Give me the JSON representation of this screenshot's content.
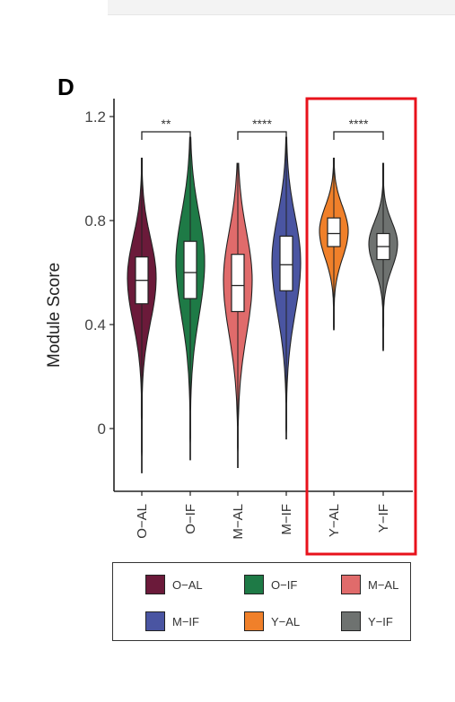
{
  "panel": {
    "letter": "D"
  },
  "chart_data": {
    "type": "violin",
    "title": "",
    "xlabel": "",
    "ylabel": "Module Score",
    "ylim": [
      -0.22,
      1.25
    ],
    "yticks": [
      0,
      0.4,
      0.8,
      1.2
    ],
    "ytick_labels": [
      "0",
      "0.4",
      "0.8",
      "1.2"
    ],
    "categories": [
      "O-AL",
      "O-IF",
      "M-AL",
      "M-IF",
      "Y-AL",
      "Y-IF"
    ],
    "category_labels": [
      "O−AL",
      "O−IF",
      "M−AL",
      "M−IF",
      "Y−AL",
      "Y−IF"
    ],
    "colors": [
      "#6b1a3a",
      "#1e7a46",
      "#e06b6b",
      "#4a55a2",
      "#f0802a",
      "#6e7270"
    ],
    "series": [
      {
        "name": "O−AL",
        "min": -0.17,
        "q1": 0.48,
        "median": 0.57,
        "q3": 0.66,
        "max": 1.04,
        "peak_density_y": 0.58
      },
      {
        "name": "O−IF",
        "min": -0.12,
        "q1": 0.5,
        "median": 0.6,
        "q3": 0.72,
        "max": 1.12,
        "peak_density_y": 0.64
      },
      {
        "name": "M−AL",
        "min": -0.15,
        "q1": 0.45,
        "median": 0.55,
        "q3": 0.67,
        "max": 1.02,
        "peak_density_y": 0.57
      },
      {
        "name": "M−IF",
        "min": -0.04,
        "q1": 0.53,
        "median": 0.63,
        "q3": 0.74,
        "max": 1.12,
        "peak_density_y": 0.64
      },
      {
        "name": "Y−AL",
        "min": 0.38,
        "q1": 0.7,
        "median": 0.75,
        "q3": 0.81,
        "max": 1.04,
        "peak_density_y": 0.76
      },
      {
        "name": "Y−IF",
        "min": 0.3,
        "q1": 0.65,
        "median": 0.7,
        "q3": 0.75,
        "max": 1.02,
        "peak_density_y": 0.71
      }
    ],
    "significance": [
      {
        "from": "O-AL",
        "to": "O-IF",
        "label": "**"
      },
      {
        "from": "M-AL",
        "to": "M-IF",
        "label": "****"
      },
      {
        "from": "Y-AL",
        "to": "Y-IF",
        "label": "****"
      }
    ],
    "highlight": {
      "groups": [
        "Y-AL",
        "Y-IF"
      ],
      "color": "#e8121b"
    },
    "legend": {
      "placement": "bottom",
      "entries": [
        "O−AL",
        "O−IF",
        "M−AL",
        "M−IF",
        "Y−AL",
        "Y−IF"
      ]
    }
  }
}
